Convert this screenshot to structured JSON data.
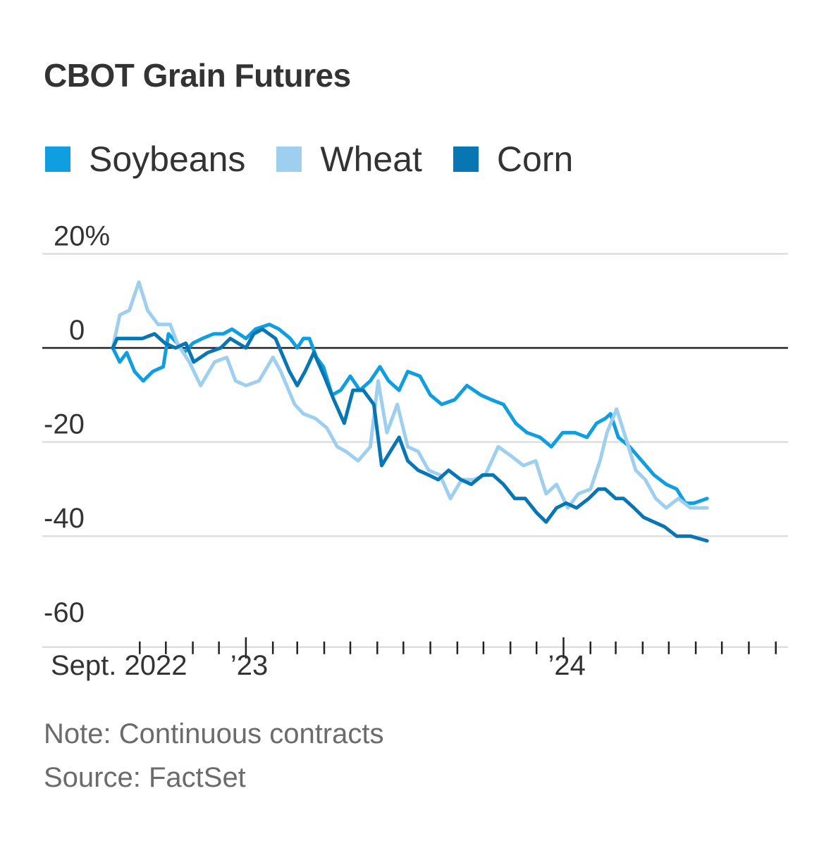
{
  "chart_data": {
    "type": "line",
    "title": "CBOT Grain Futures",
    "y_unit": "%",
    "ylim": [
      -60,
      20
    ],
    "y_ticks": [
      {
        "value": 20,
        "label": "20%"
      },
      {
        "value": 0,
        "label": "0"
      },
      {
        "value": -20,
        "label": "-20"
      },
      {
        "value": -40,
        "label": "-40"
      },
      {
        "value": -60,
        "label": "-60"
      }
    ],
    "x_range": [
      "2022-08-01",
      "2024-09-15"
    ],
    "x_ticks": [
      "2022-09-01",
      "2022-10-01",
      "2022-11-01",
      "2022-12-01",
      "2023-01-01",
      "2023-02-01",
      "2023-03-01",
      "2023-04-01",
      "2023-05-01",
      "2023-06-01",
      "2023-07-01",
      "2023-08-01",
      "2023-09-01",
      "2023-10-01",
      "2023-11-01",
      "2023-12-01",
      "2024-01-01",
      "2024-02-01",
      "2024-03-01",
      "2024-04-01",
      "2024-05-01",
      "2024-06-01",
      "2024-07-01",
      "2024-08-01",
      "2024-09-01"
    ],
    "x_major_ticks": [
      "2023-01-01",
      "2024-01-01"
    ],
    "x_tick_labels": [
      {
        "date": "2022-09-01",
        "label": "Sept. 2022"
      },
      {
        "date": "2023-01-01",
        "label": "’23"
      },
      {
        "date": "2024-01-01",
        "label": "’24"
      }
    ],
    "legend_position": "top-left",
    "grid": true,
    "series": [
      {
        "name": "Soybeans",
        "color": "#0f9fe0",
        "points": [
          [
            "2022-08-01",
            0
          ],
          [
            "2022-08-09",
            -3
          ],
          [
            "2022-08-17",
            -1
          ],
          [
            "2022-08-26",
            -5
          ],
          [
            "2022-09-05",
            -7
          ],
          [
            "2022-09-16",
            -5
          ],
          [
            "2022-09-28",
            -4
          ],
          [
            "2022-10-04",
            3
          ],
          [
            "2022-10-14",
            1
          ],
          [
            "2022-10-22",
            -1
          ],
          [
            "2022-11-01",
            1
          ],
          [
            "2022-11-12",
            2
          ],
          [
            "2022-11-25",
            3
          ],
          [
            "2022-12-06",
            3
          ],
          [
            "2022-12-16",
            4
          ],
          [
            "2023-01-01",
            2
          ],
          [
            "2023-01-12",
            4
          ],
          [
            "2023-01-28",
            5
          ],
          [
            "2023-02-08",
            4
          ],
          [
            "2023-02-21",
            2
          ],
          [
            "2023-03-01",
            0
          ],
          [
            "2023-03-08",
            2
          ],
          [
            "2023-03-15",
            2
          ],
          [
            "2023-03-23",
            -2
          ],
          [
            "2023-03-31",
            -4
          ],
          [
            "2023-04-10",
            -10
          ],
          [
            "2023-04-20",
            -9
          ],
          [
            "2023-05-01",
            -6
          ],
          [
            "2023-05-12",
            -9
          ],
          [
            "2023-05-24",
            -7
          ],
          [
            "2023-06-04",
            -4
          ],
          [
            "2023-06-14",
            -7
          ],
          [
            "2023-06-26",
            -9
          ],
          [
            "2023-07-06",
            -5
          ],
          [
            "2023-07-20",
            -6
          ],
          [
            "2023-08-01",
            -10
          ],
          [
            "2023-08-14",
            -12
          ],
          [
            "2023-08-29",
            -11
          ],
          [
            "2023-09-12",
            -8
          ],
          [
            "2023-09-28",
            -10
          ],
          [
            "2023-10-10",
            -11
          ],
          [
            "2023-10-24",
            -12
          ],
          [
            "2023-11-07",
            -16
          ],
          [
            "2023-11-20",
            -18
          ],
          [
            "2023-12-05",
            -19
          ],
          [
            "2023-12-18",
            -21
          ],
          [
            "2023-12-31",
            -18
          ],
          [
            "2024-01-14",
            -18
          ],
          [
            "2024-01-28",
            -19
          ],
          [
            "2024-02-08",
            -16
          ],
          [
            "2024-02-18",
            -15
          ],
          [
            "2024-02-24",
            -14
          ],
          [
            "2024-03-04",
            -19
          ],
          [
            "2024-03-17",
            -21
          ],
          [
            "2024-03-31",
            -24
          ],
          [
            "2024-04-14",
            -27
          ],
          [
            "2024-04-28",
            -29
          ],
          [
            "2024-05-10",
            -30
          ],
          [
            "2024-05-20",
            -33
          ],
          [
            "2024-05-30",
            -33
          ],
          [
            "2024-06-14",
            -32
          ]
        ]
      },
      {
        "name": "Wheat",
        "color": "#9fcfee",
        "points": [
          [
            "2022-08-01",
            0
          ],
          [
            "2022-08-09",
            7
          ],
          [
            "2022-08-20",
            8
          ],
          [
            "2022-08-31",
            14
          ],
          [
            "2022-09-10",
            8
          ],
          [
            "2022-09-22",
            5
          ],
          [
            "2022-10-06",
            5
          ],
          [
            "2022-10-14",
            1
          ],
          [
            "2022-10-28",
            -3
          ],
          [
            "2022-11-10",
            -8
          ],
          [
            "2022-11-26",
            -3
          ],
          [
            "2022-12-10",
            -2
          ],
          [
            "2022-12-20",
            -7
          ],
          [
            "2023-01-01",
            -8
          ],
          [
            "2023-01-16",
            -7
          ],
          [
            "2023-02-01",
            -2
          ],
          [
            "2023-02-10",
            -5
          ],
          [
            "2023-02-26",
            -12
          ],
          [
            "2023-03-08",
            -14
          ],
          [
            "2023-03-22",
            -15
          ],
          [
            "2023-04-04",
            -17
          ],
          [
            "2023-04-16",
            -21
          ],
          [
            "2023-04-26",
            -22
          ],
          [
            "2023-05-10",
            -24
          ],
          [
            "2023-05-24",
            -21
          ],
          [
            "2023-06-02",
            -7
          ],
          [
            "2023-06-12",
            -18
          ],
          [
            "2023-06-24",
            -12
          ],
          [
            "2023-07-06",
            -21
          ],
          [
            "2023-07-18",
            -22
          ],
          [
            "2023-07-30",
            -26
          ],
          [
            "2023-08-12",
            -27
          ],
          [
            "2023-08-24",
            -32
          ],
          [
            "2023-09-06",
            -28
          ],
          [
            "2023-09-20",
            -28
          ],
          [
            "2023-10-03",
            -27
          ],
          [
            "2023-10-18",
            -21
          ],
          [
            "2023-11-02",
            -23
          ],
          [
            "2023-11-16",
            -25
          ],
          [
            "2023-11-30",
            -24
          ],
          [
            "2023-12-12",
            -31
          ],
          [
            "2023-12-24",
            -29
          ],
          [
            "2024-01-06",
            -34
          ],
          [
            "2024-01-18",
            -31
          ],
          [
            "2024-02-01",
            -30
          ],
          [
            "2024-02-12",
            -24
          ],
          [
            "2024-02-20",
            -18
          ],
          [
            "2024-03-02",
            -13
          ],
          [
            "2024-03-14",
            -20
          ],
          [
            "2024-03-24",
            -26
          ],
          [
            "2024-04-04",
            -28
          ],
          [
            "2024-04-16",
            -32
          ],
          [
            "2024-04-28",
            -34
          ],
          [
            "2024-05-12",
            -32
          ],
          [
            "2024-05-26",
            -34
          ],
          [
            "2024-06-14",
            -34
          ]
        ]
      },
      {
        "name": "Corn",
        "color": "#0776b3",
        "points": [
          [
            "2022-08-01",
            0
          ],
          [
            "2022-08-06",
            2
          ],
          [
            "2022-08-20",
            2
          ],
          [
            "2022-09-04",
            2
          ],
          [
            "2022-09-18",
            3
          ],
          [
            "2022-09-30",
            1
          ],
          [
            "2022-10-12",
            0
          ],
          [
            "2022-10-24",
            1
          ],
          [
            "2022-11-02",
            -3
          ],
          [
            "2022-11-18",
            -1
          ],
          [
            "2022-12-03",
            0
          ],
          [
            "2022-12-14",
            2
          ],
          [
            "2023-01-01",
            0
          ],
          [
            "2023-01-10",
            3
          ],
          [
            "2023-01-20",
            4
          ],
          [
            "2023-02-04",
            2
          ],
          [
            "2023-02-20",
            -5
          ],
          [
            "2023-03-01",
            -8
          ],
          [
            "2023-03-10",
            -5
          ],
          [
            "2023-03-20",
            -1
          ],
          [
            "2023-04-01",
            -6
          ],
          [
            "2023-04-12",
            -11
          ],
          [
            "2023-04-24",
            -16
          ],
          [
            "2023-05-04",
            -9
          ],
          [
            "2023-05-16",
            -9
          ],
          [
            "2023-05-28",
            -12
          ],
          [
            "2023-06-06",
            -25
          ],
          [
            "2023-06-16",
            -22
          ],
          [
            "2023-06-26",
            -19
          ],
          [
            "2023-07-06",
            -24
          ],
          [
            "2023-07-18",
            -26
          ],
          [
            "2023-07-30",
            -27
          ],
          [
            "2023-08-10",
            -28
          ],
          [
            "2023-08-22",
            -26
          ],
          [
            "2023-09-05",
            -28
          ],
          [
            "2023-09-17",
            -29
          ],
          [
            "2023-09-30",
            -27
          ],
          [
            "2023-10-12",
            -27
          ],
          [
            "2023-10-24",
            -29
          ],
          [
            "2023-11-06",
            -32
          ],
          [
            "2023-11-18",
            -32
          ],
          [
            "2023-12-01",
            -35
          ],
          [
            "2023-12-12",
            -37
          ],
          [
            "2023-12-24",
            -34
          ],
          [
            "2024-01-04",
            -33
          ],
          [
            "2024-01-16",
            -34
          ],
          [
            "2024-01-30",
            -32
          ],
          [
            "2024-02-10",
            -30
          ],
          [
            "2024-02-18",
            -30
          ],
          [
            "2024-03-01",
            -32
          ],
          [
            "2024-03-10",
            -32
          ],
          [
            "2024-03-22",
            -34
          ],
          [
            "2024-04-02",
            -36
          ],
          [
            "2024-04-14",
            -37
          ],
          [
            "2024-04-26",
            -38
          ],
          [
            "2024-05-10",
            -40
          ],
          [
            "2024-05-26",
            -40
          ],
          [
            "2024-06-14",
            -41
          ]
        ]
      }
    ]
  },
  "footer": {
    "note": "Note: Continuous contracts",
    "source": "Source: FactSet"
  }
}
